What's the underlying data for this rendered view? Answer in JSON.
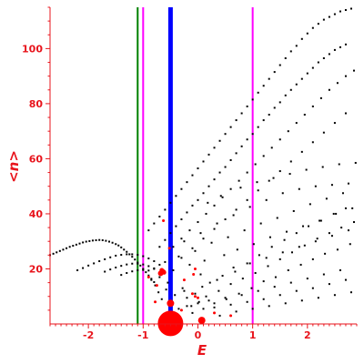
{
  "chart_data": {
    "type": "scatter",
    "xlabel": "E",
    "ylabel": "<n>",
    "xlim": [
      -2.7,
      2.9
    ],
    "ylim": [
      0,
      115
    ],
    "x_ticks": [
      -2,
      -1,
      0,
      1,
      2
    ],
    "x_tick_labels": [
      "-2",
      "-1",
      "0",
      "1",
      "2"
    ],
    "y_ticks": [
      20,
      40,
      60,
      80,
      100
    ],
    "y_tick_labels": [
      "20",
      "40",
      "60",
      "80",
      "100"
    ],
    "grid": false,
    "colors": {
      "axis": "#e8141c",
      "points": "#000000",
      "highlight_points": "#ff0000",
      "line_green": "#007f00",
      "line_blue": "#0000ff",
      "line_magenta": "#ff00ff"
    },
    "vertical_lines": [
      {
        "x": -1.1,
        "color": "#007f00",
        "width": 2
      },
      {
        "x": -1.0,
        "color": "#ff00ff",
        "width": 2
      },
      {
        "x": -0.5,
        "color": "#0000ff",
        "width": 5
      },
      {
        "x": 1.0,
        "color": "#ff00ff",
        "width": 2
      }
    ],
    "highlight_points": [
      {
        "x": -0.5,
        "y": 0.2,
        "r": 14
      },
      {
        "x": -0.5,
        "y": 7.5,
        "r": 4
      },
      {
        "x": 0.07,
        "y": 1.3,
        "r": 4
      },
      {
        "x": -0.68,
        "y": 18.4,
        "r": 3
      },
      {
        "x": -0.63,
        "y": 19,
        "r": 2.5
      },
      {
        "x": -0.66,
        "y": 19.5,
        "r": 2.5
      },
      {
        "x": -0.62,
        "y": 18.7,
        "r": 2.5
      },
      {
        "x": -0.63,
        "y": 37.5,
        "r": 1.5
      },
      {
        "x": -0.52,
        "y": 27.5,
        "r": 1.5
      },
      {
        "x": -0.05,
        "y": 20,
        "r": 1.5
      },
      {
        "x": -0.08,
        "y": 18,
        "r": 1.5
      },
      {
        "x": -0.05,
        "y": 10,
        "r": 1.5
      },
      {
        "x": -0.9,
        "y": 17,
        "r": 1.5
      },
      {
        "x": -0.75,
        "y": 14,
        "r": 1.5
      },
      {
        "x": -0.78,
        "y": 8,
        "r": 1.5
      },
      {
        "x": -0.25,
        "y": 16,
        "r": 1.5
      },
      {
        "x": -0.3,
        "y": 5,
        "r": 1.5
      },
      {
        "x": 0.0,
        "y": 9.5,
        "r": 1.5
      },
      {
        "x": 0.6,
        "y": 3,
        "r": 1.5
      },
      {
        "x": 0.3,
        "y": 4,
        "r": 1.5
      },
      {
        "x": -0.1,
        "y": 11,
        "r": 1.5
      }
    ],
    "series": [
      {
        "x": [
          -2.7,
          -2.64,
          -2.58,
          -2.52,
          -2.46,
          -2.4,
          -2.34,
          -2.28,
          -2.22,
          -2.16,
          -2.1,
          -2.04,
          -1.98,
          -1.92,
          -1.86,
          -1.8,
          -1.74,
          -1.68,
          -1.62,
          -1.56,
          -1.5,
          -1.45,
          -1.4,
          -1.35,
          -1.3,
          -1.25,
          -1.2,
          -1.15,
          -1.1,
          -1.05,
          -1.0,
          -0.95,
          -0.9,
          -0.85,
          -0.8
        ],
        "y": [
          25.0,
          25.5,
          26.0,
          26.5,
          27.0,
          27.5,
          28.0,
          28.4,
          28.8,
          29.2,
          29.6,
          29.9,
          30.1,
          30.3,
          30.4,
          30.5,
          30.4,
          30.2,
          29.9,
          29.5,
          29.0,
          28.5,
          27.8,
          27.0,
          26.2,
          25.3,
          24.4,
          23.4,
          22.3,
          21.2,
          20.0,
          18.8,
          17.6,
          16.4,
          15.2
        ]
      },
      {
        "x": [
          -2.2,
          -2.1,
          -2.0,
          -1.9,
          -1.8,
          -1.7,
          -1.6,
          -1.5,
          -1.4,
          -1.3,
          -1.2,
          -1.1,
          -1.0,
          -0.9,
          -0.8,
          -0.7
        ],
        "y": [
          19.5,
          20.3,
          21.2,
          22.0,
          22.8,
          23.5,
          24.2,
          24.8,
          25.1,
          25.3,
          25.3,
          25.1,
          24.6,
          23.8,
          22.8,
          21.5
        ]
      },
      {
        "x": [
          -1.7,
          -1.6,
          -1.5,
          -1.4,
          -1.3,
          -1.2,
          -1.1,
          -1.0,
          -0.9,
          -0.8
        ],
        "y": [
          19.0,
          19.8,
          20.5,
          21.1,
          21.6,
          21.9,
          21.9,
          21.6,
          21.0,
          20.2
        ]
      },
      {
        "x": [
          -1.4,
          -1.3,
          -1.2,
          -1.1,
          -1.0,
          -0.9
        ],
        "y": [
          17.8,
          18.5,
          19.1,
          19.5,
          19.6,
          19.4
        ]
      },
      {
        "x": [
          -0.9,
          -0.8,
          -0.7,
          -0.6,
          -0.5,
          -0.4,
          -0.3,
          -0.2,
          -0.1,
          0.0,
          0.1,
          0.2,
          0.3,
          0.4,
          0.5,
          0.6,
          0.7,
          0.8,
          0.9,
          1.0,
          1.1,
          1.2,
          1.3,
          1.4,
          1.5,
          1.6,
          1.7,
          1.8,
          1.9,
          2.0,
          2.1,
          2.2,
          2.3,
          2.4,
          2.5,
          2.6,
          2.7,
          2.8
        ],
        "y": [
          34.0,
          36.5,
          39.0,
          41.5,
          44.0,
          46.5,
          49.0,
          51.5,
          54.0,
          56.5,
          59.0,
          61.5,
          64.0,
          66.5,
          69.0,
          71.5,
          74.0,
          76.5,
          79.0,
          81.5,
          84.0,
          86.5,
          89.0,
          91.5,
          94.0,
          96.5,
          99.0,
          101.0,
          103.5,
          105.5,
          107.5,
          109.0,
          110.5,
          111.5,
          112.5,
          113.5,
          114.0,
          114.5
        ]
      },
      {
        "x": [
          -0.7,
          -0.6,
          -0.5,
          -0.4,
          -0.3,
          -0.2,
          -0.1,
          0.0,
          0.1,
          0.2,
          0.3,
          0.4,
          0.5,
          0.6,
          0.7,
          0.8,
          0.9,
          1.0,
          1.1,
          1.2,
          1.3,
          1.4,
          1.5,
          1.6,
          1.7,
          1.8,
          1.9,
          2.0,
          2.1,
          2.2,
          2.3,
          2.4,
          2.5,
          2.6,
          2.7
        ],
        "y": [
          28.0,
          30.5,
          33.0,
          35.5,
          38.0,
          40.5,
          43.0,
          45.0,
          47.5,
          50.0,
          52.5,
          55.0,
          57.0,
          59.5,
          62.0,
          64.5,
          67.0,
          69.0,
          71.5,
          74.0,
          76.0,
          78.5,
          80.5,
          83.0,
          85.0,
          87.0,
          89.0,
          91.0,
          93.0,
          95.0,
          96.5,
          98.0,
          99.5,
          100.5,
          101.5
        ]
      },
      {
        "x": [
          -0.45,
          -0.3,
          -0.15,
          0.0,
          0.15,
          0.3,
          0.45,
          0.6,
          0.75,
          0.9,
          1.05,
          1.2,
          1.35,
          1.5,
          1.65,
          1.8,
          1.95,
          2.1,
          2.25,
          2.4,
          2.55,
          2.7,
          2.85
        ],
        "y": [
          28.0,
          31.0,
          34.0,
          37.0,
          40.0,
          43.0,
          46.0,
          49.0,
          52.0,
          55.0,
          58.0,
          61.0,
          64.0,
          67.0,
          70.0,
          73.0,
          76.0,
          79.0,
          82.0,
          85.0,
          87.5,
          90.0,
          92.0
        ]
      },
      {
        "x": [
          -0.3,
          -0.1,
          0.1,
          0.3,
          0.5,
          0.7,
          0.9,
          1.1,
          1.3,
          1.5,
          1.7,
          1.9,
          2.1,
          2.3,
          2.5,
          2.7
        ],
        "y": [
          24.0,
          27.5,
          31.0,
          34.5,
          38.0,
          41.5,
          45.0,
          48.5,
          52.0,
          55.5,
          59.0,
          62.5,
          66.0,
          69.5,
          73.0,
          76.5
        ]
      },
      {
        "x": [
          -0.85,
          -0.78,
          -0.72,
          -0.66,
          -0.58,
          -0.5,
          -0.42,
          -0.35,
          -0.28,
          -0.2,
          -0.12,
          -0.05,
          0.02,
          0.08,
          0.15,
          0.22,
          0.3,
          0.38,
          0.45,
          0.52,
          0.6,
          0.68,
          0.75,
          0.82,
          0.9,
          0.98,
          1.05,
          1.12,
          1.2,
          1.28,
          1.35,
          1.42,
          1.5,
          1.58,
          1.65,
          1.72,
          1.8,
          1.88,
          1.95,
          2.02,
          2.1,
          2.18,
          2.25,
          2.32,
          2.4,
          2.48,
          2.55,
          2.62,
          2.7,
          2.78,
          2.85,
          -0.8,
          -0.7,
          -0.6,
          -0.55,
          -0.45,
          -0.35,
          -0.25,
          -0.15,
          -0.05,
          0.05,
          0.12,
          0.25,
          0.35,
          0.48,
          0.55,
          0.65,
          0.72,
          0.85,
          0.95,
          1.02,
          1.15,
          1.25,
          1.32,
          1.45,
          1.55,
          1.62,
          1.75,
          1.85,
          1.92,
          2.05,
          2.15,
          2.22,
          2.35,
          2.45,
          2.52,
          2.65,
          2.75,
          2.82,
          -0.4,
          -0.3,
          -0.2,
          -0.1,
          0.0,
          0.1,
          0.2,
          0.3,
          0.4,
          0.5,
          0.6,
          0.7,
          0.8,
          0.9,
          1.0,
          1.1,
          1.2,
          1.3,
          1.4,
          1.5,
          1.6,
          1.7,
          1.8,
          1.9,
          2.0,
          2.1,
          2.2,
          2.3,
          2.4,
          2.5,
          2.6,
          2.7,
          2.8,
          -0.25,
          0.05,
          0.35,
          0.65,
          0.95,
          1.25,
          1.55,
          1.85,
          2.15,
          2.45,
          2.75,
          0.18,
          0.42,
          0.78,
          1.08,
          1.38,
          1.68,
          1.98,
          2.28,
          2.58,
          2.88
        ],
        "y": [
          16.0,
          14.0,
          11.5,
          9.0,
          12.5,
          7.0,
          10.5,
          5.5,
          13.0,
          9.5,
          6.5,
          11.0,
          8.0,
          13.5,
          10.0,
          15.0,
          7.5,
          12.0,
          17.5,
          9.0,
          14.5,
          19.0,
          11.0,
          16.5,
          22.0,
          13.0,
          18.5,
          25.0,
          15.5,
          21.0,
          28.0,
          17.0,
          23.5,
          30.5,
          19.5,
          26.0,
          33.0,
          21.5,
          28.5,
          35.5,
          23.5,
          31.0,
          37.5,
          25.5,
          33.0,
          40.0,
          27.0,
          35.0,
          42.0,
          29.0,
          37.0,
          20.0,
          17.0,
          22.5,
          15.0,
          19.5,
          24.5,
          12.0,
          21.5,
          26.5,
          18.0,
          23.0,
          29.5,
          16.0,
          25.0,
          31.5,
          20.5,
          27.0,
          34.0,
          22.0,
          29.0,
          36.5,
          24.0,
          31.5,
          38.5,
          26.0,
          33.5,
          41.0,
          28.0,
          35.5,
          43.5,
          30.0,
          37.5,
          45.5,
          32.0,
          40.0,
          47.5,
          34.0,
          42.0,
          3.5,
          5.0,
          6.5,
          4.0,
          7.5,
          5.5,
          8.5,
          6.0,
          3.0,
          9.5,
          7.0,
          4.5,
          10.5,
          8.0,
          5.5,
          12.0,
          9.0,
          6.5,
          13.5,
          10.5,
          7.5,
          15.0,
          12.0,
          8.5,
          16.5,
          13.0,
          9.5,
          18.0,
          14.5,
          10.5,
          19.5,
          16.0,
          11.5,
          30.0,
          33.0,
          36.5,
          39.5,
          42.5,
          45.0,
          47.5,
          49.0,
          50.0,
          50.5,
          51.0,
          44.0,
          46.5,
          49.5,
          51.5,
          53.0,
          54.5,
          56.0,
          57.0,
          58.0,
          58.5
        ]
      }
    ]
  }
}
